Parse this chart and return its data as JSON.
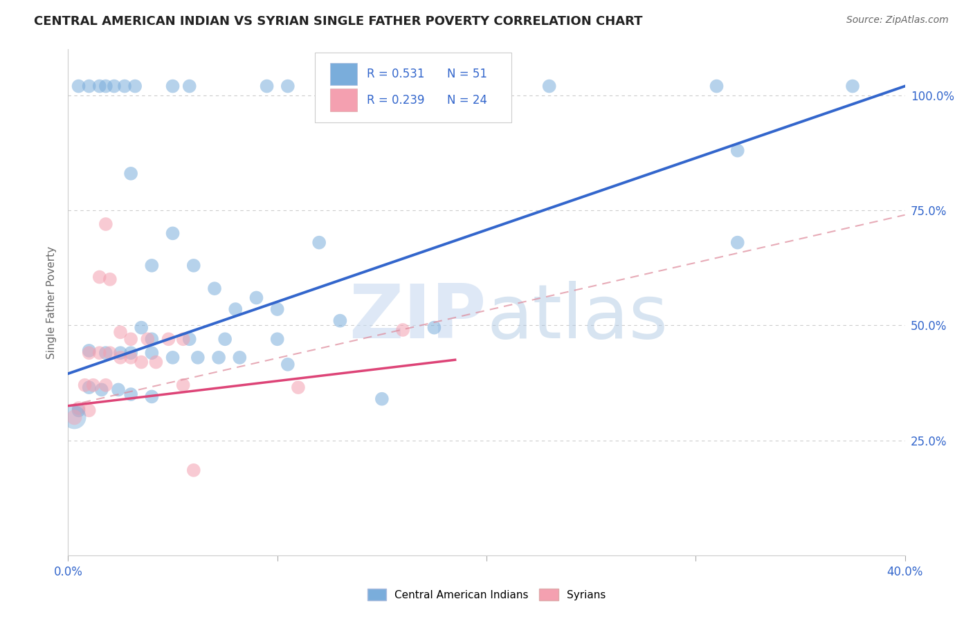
{
  "title": "CENTRAL AMERICAN INDIAN VS SYRIAN SINGLE FATHER POVERTY CORRELATION CHART",
  "source": "Source: ZipAtlas.com",
  "ylabel": "Single Father Poverty",
  "xlim": [
    0.0,
    0.4
  ],
  "ylim": [
    0.0,
    1.1
  ],
  "xticks": [
    0.0,
    0.1,
    0.2,
    0.3,
    0.4
  ],
  "xtick_labels": [
    "0.0%",
    "",
    "",
    "",
    "40.0%"
  ],
  "ytick_labels": [
    "25.0%",
    "50.0%",
    "75.0%",
    "100.0%"
  ],
  "ytick_positions": [
    0.25,
    0.5,
    0.75,
    1.0
  ],
  "grid_color": "#cccccc",
  "background_color": "#ffffff",
  "watermark_zip": "ZIP",
  "watermark_atlas": "atlas",
  "legend_r1": "R = 0.531",
  "legend_n1": "N = 51",
  "legend_r2": "R = 0.239",
  "legend_n2": "N = 24",
  "blue_color": "#7aaddb",
  "pink_color": "#f4a0b0",
  "blue_line_color": "#3366cc",
  "pink_line_color": "#dd4477",
  "pink_dash_color": "#dd8899",
  "blue_scatter": [
    [
      0.005,
      1.02
    ],
    [
      0.01,
      1.02
    ],
    [
      0.015,
      1.02
    ],
    [
      0.018,
      1.02
    ],
    [
      0.022,
      1.02
    ],
    [
      0.027,
      1.02
    ],
    [
      0.032,
      1.02
    ],
    [
      0.05,
      1.02
    ],
    [
      0.058,
      1.02
    ],
    [
      0.095,
      1.02
    ],
    [
      0.105,
      1.02
    ],
    [
      0.155,
      1.02
    ],
    [
      0.2,
      1.02
    ],
    [
      0.23,
      1.02
    ],
    [
      0.31,
      1.02
    ],
    [
      0.375,
      1.02
    ],
    [
      0.32,
      0.88
    ],
    [
      0.32,
      0.68
    ],
    [
      0.03,
      0.83
    ],
    [
      0.05,
      0.7
    ],
    [
      0.12,
      0.68
    ],
    [
      0.04,
      0.63
    ],
    [
      0.06,
      0.63
    ],
    [
      0.07,
      0.58
    ],
    [
      0.09,
      0.56
    ],
    [
      0.08,
      0.535
    ],
    [
      0.1,
      0.535
    ],
    [
      0.13,
      0.51
    ],
    [
      0.175,
      0.495
    ],
    [
      0.035,
      0.495
    ],
    [
      0.04,
      0.47
    ],
    [
      0.058,
      0.47
    ],
    [
      0.075,
      0.47
    ],
    [
      0.1,
      0.47
    ],
    [
      0.01,
      0.445
    ],
    [
      0.018,
      0.44
    ],
    [
      0.025,
      0.44
    ],
    [
      0.03,
      0.44
    ],
    [
      0.04,
      0.44
    ],
    [
      0.05,
      0.43
    ],
    [
      0.062,
      0.43
    ],
    [
      0.072,
      0.43
    ],
    [
      0.082,
      0.43
    ],
    [
      0.105,
      0.415
    ],
    [
      0.01,
      0.365
    ],
    [
      0.016,
      0.36
    ],
    [
      0.024,
      0.36
    ],
    [
      0.03,
      0.35
    ],
    [
      0.04,
      0.345
    ],
    [
      0.15,
      0.34
    ],
    [
      0.005,
      0.315
    ]
  ],
  "pink_scatter": [
    [
      0.018,
      0.72
    ],
    [
      0.015,
      0.605
    ],
    [
      0.02,
      0.6
    ],
    [
      0.025,
      0.485
    ],
    [
      0.03,
      0.47
    ],
    [
      0.038,
      0.47
    ],
    [
      0.048,
      0.47
    ],
    [
      0.055,
      0.47
    ],
    [
      0.16,
      0.49
    ],
    [
      0.01,
      0.44
    ],
    [
      0.015,
      0.44
    ],
    [
      0.02,
      0.44
    ],
    [
      0.025,
      0.43
    ],
    [
      0.03,
      0.43
    ],
    [
      0.035,
      0.42
    ],
    [
      0.042,
      0.42
    ],
    [
      0.008,
      0.37
    ],
    [
      0.012,
      0.37
    ],
    [
      0.018,
      0.37
    ],
    [
      0.055,
      0.37
    ],
    [
      0.11,
      0.365
    ],
    [
      0.005,
      0.32
    ],
    [
      0.01,
      0.315
    ],
    [
      0.06,
      0.185
    ]
  ],
  "blue_trendline": [
    [
      0.0,
      0.395
    ],
    [
      0.4,
      1.02
    ]
  ],
  "pink_trendline": [
    [
      0.0,
      0.325
    ],
    [
      0.185,
      0.425
    ]
  ],
  "pink_dash_line": [
    [
      0.0,
      0.325
    ],
    [
      0.4,
      0.74
    ]
  ]
}
